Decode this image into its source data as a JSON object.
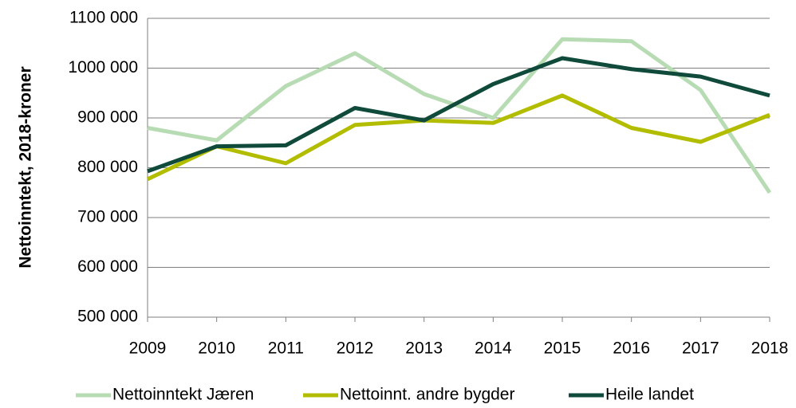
{
  "chart_data": {
    "type": "line",
    "y_label": "Nettoinntekt, 2018-kroner",
    "categories": [
      "2009",
      "2010",
      "2011",
      "2012",
      "2013",
      "2014",
      "2015",
      "2016",
      "2017",
      "2018"
    ],
    "series": [
      {
        "name": "Nettoinntekt Jæren",
        "color": "#b7dcb3",
        "values": [
          880000,
          855000,
          964000,
          1030000,
          948000,
          900000,
          1058000,
          1054000,
          956000,
          750000
        ]
      },
      {
        "name": "Nettoinnt. andre bygder",
        "color": "#b3bd00",
        "values": [
          777000,
          843000,
          809000,
          886000,
          895000,
          890000,
          945000,
          880000,
          852000,
          906000
        ]
      },
      {
        "name": "Heile landet",
        "color": "#0f4a3a",
        "values": [
          793000,
          843000,
          845000,
          920000,
          895000,
          968000,
          1020000,
          998000,
          983000,
          945000
        ]
      }
    ],
    "ylim": [
      500000,
      1100000
    ],
    "yticks": [
      {
        "value": 500000,
        "label": "500 000"
      },
      {
        "value": 600000,
        "label": "600 000"
      },
      {
        "value": 700000,
        "label": "700 000"
      },
      {
        "value": 800000,
        "label": "800 000"
      },
      {
        "value": 900000,
        "label": "900 000"
      },
      {
        "value": 1000000,
        "label": "1000 000"
      },
      {
        "value": 1100000,
        "label": "1100 000"
      }
    ],
    "grid": true,
    "legend": "bottom"
  }
}
